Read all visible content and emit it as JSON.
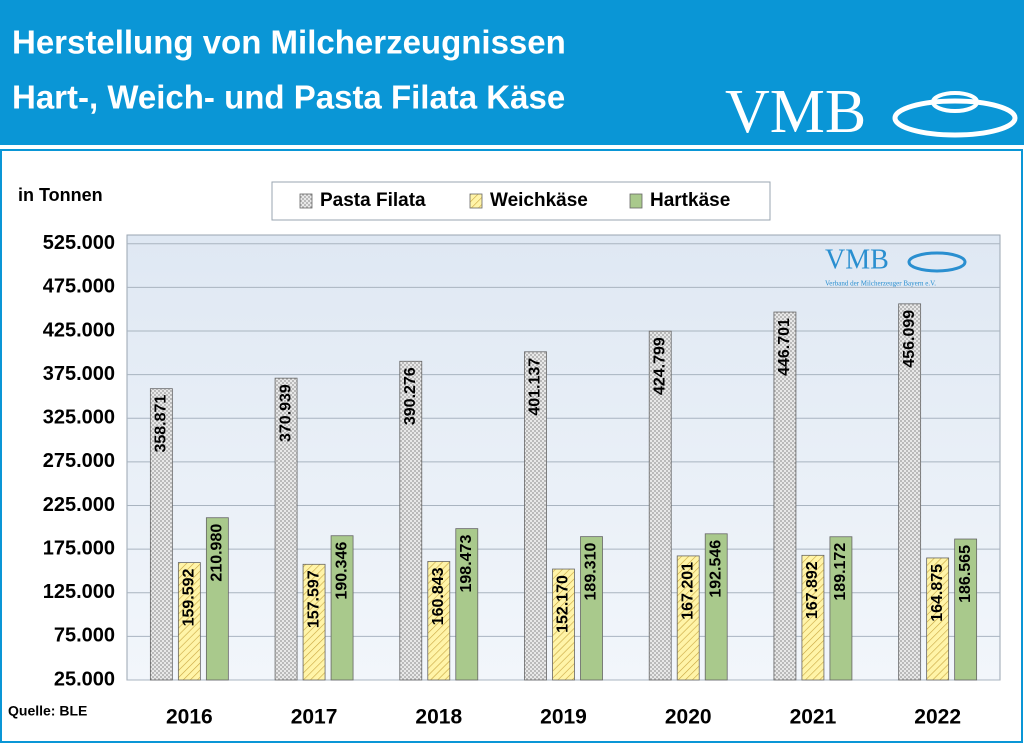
{
  "chart_data": {
    "type": "bar",
    "title": "Herstellung von Milcherzeugnissen",
    "subtitle": "Hart-, Weich- und Pasta Filata Käse",
    "logo": "VMB",
    "inner_logo": "VMB",
    "inner_logo_caption": "Verband der Milcherzeuger Bayern e.V.",
    "y_label": "in Tonnen",
    "source": "Quelle: BLE",
    "categories": [
      "2016",
      "2017",
      "2018",
      "2019",
      "2020",
      "2021",
      "2022"
    ],
    "series": [
      {
        "name": "Pasta Filata",
        "color": "#9a9a9a",
        "pattern": "dots",
        "values": [
          358871,
          370939,
          390276,
          401137,
          424799,
          446701,
          456099
        ],
        "value_labels": [
          "358.871",
          "370.939",
          "390.276",
          "401.137",
          "424.799",
          "446.701",
          "456.099"
        ]
      },
      {
        "name": "Weichkäse",
        "color": "#fff4a8",
        "pattern": "hatch",
        "values": [
          159592,
          157597,
          160843,
          152170,
          167201,
          167892,
          164875
        ],
        "value_labels": [
          "159.592",
          "157.597",
          "160.843",
          "152.170",
          "167.201",
          "167.892",
          "164.875"
        ]
      },
      {
        "name": "Hartkäse",
        "color": "#a9c98c",
        "pattern": "solid",
        "values": [
          210980,
          190346,
          198473,
          189310,
          192546,
          189172,
          186565
        ],
        "value_labels": [
          "210.980",
          "190.346",
          "198.473",
          "189.310",
          "192.546",
          "189.172",
          "186.565"
        ]
      }
    ],
    "ylim": [
      25000,
      535000
    ],
    "yticks": [
      {
        "value": 25000,
        "label": "25.000"
      },
      {
        "value": 75000,
        "label": "75.000"
      },
      {
        "value": 125000,
        "label": "125.000"
      },
      {
        "value": 175000,
        "label": "175.000"
      },
      {
        "value": 225000,
        "label": "225.000"
      },
      {
        "value": 275000,
        "label": "275.000"
      },
      {
        "value": 325000,
        "label": "325.000"
      },
      {
        "value": 375000,
        "label": "375.000"
      },
      {
        "value": 425000,
        "label": "425.000"
      },
      {
        "value": 475000,
        "label": "475.000"
      },
      {
        "value": 525000,
        "label": "525.000"
      }
    ],
    "grid": true,
    "legend": "top"
  }
}
